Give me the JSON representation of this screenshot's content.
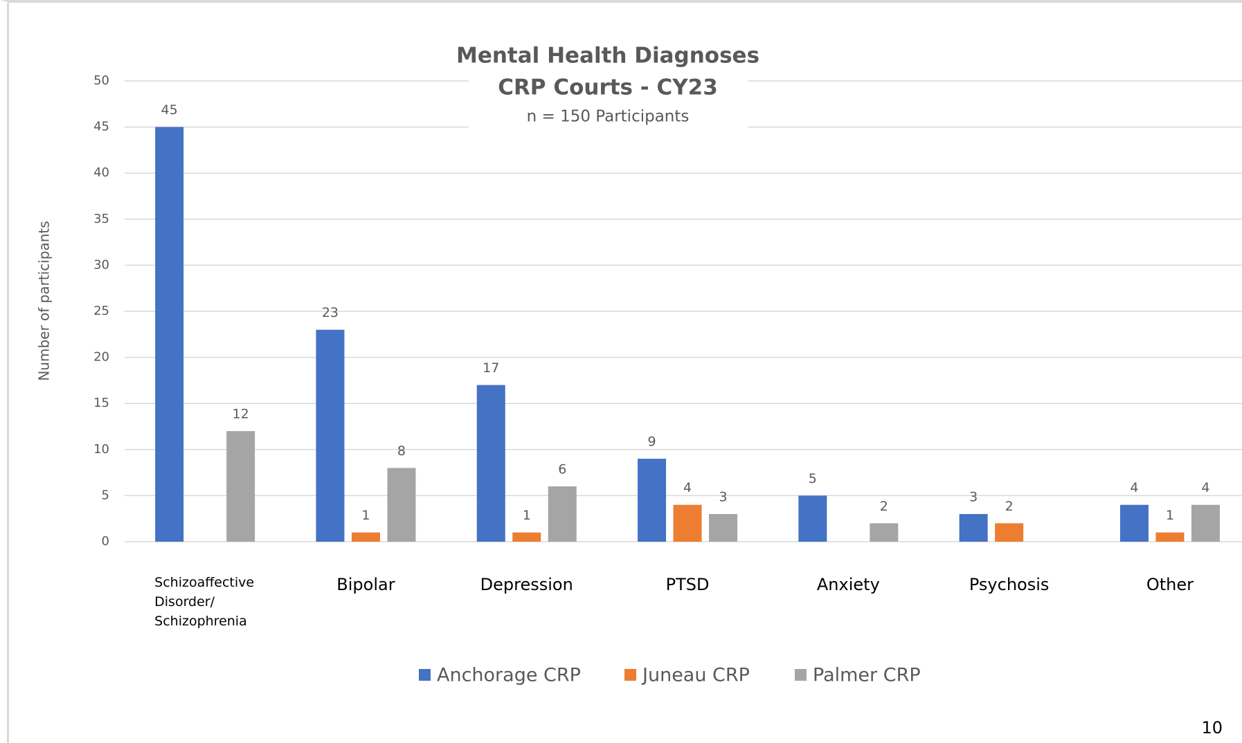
{
  "chart_data": {
    "type": "bar",
    "title": "Mental Health Diagnoses",
    "subtitle": "CRP Courts - CY23",
    "note": "n = 150 Participants",
    "y_axis_label": "Number of participants",
    "categories": [
      "Schizoaffective Disorder/ Schizophrenia",
      "Bipolar",
      "Depression",
      "PTSD",
      "Anxiety",
      "Psychosis",
      "Other"
    ],
    "series": [
      {
        "name": "Anchorage CRP",
        "color": "#4472c4",
        "values": [
          45,
          23,
          17,
          9,
          5,
          3,
          4
        ]
      },
      {
        "name": "Juneau CRP",
        "color": "#ed7d31",
        "values": [
          null,
          1,
          1,
          4,
          null,
          2,
          1
        ]
      },
      {
        "name": "Palmer CRP",
        "color": "#a5a5a5",
        "values": [
          12,
          8,
          6,
          3,
          2,
          null,
          4
        ]
      }
    ],
    "ylim": [
      0,
      50
    ],
    "yticks": [
      0,
      5,
      10,
      15,
      20,
      25,
      30,
      35,
      40,
      45,
      50
    ],
    "grid": true
  },
  "page_number": "10"
}
